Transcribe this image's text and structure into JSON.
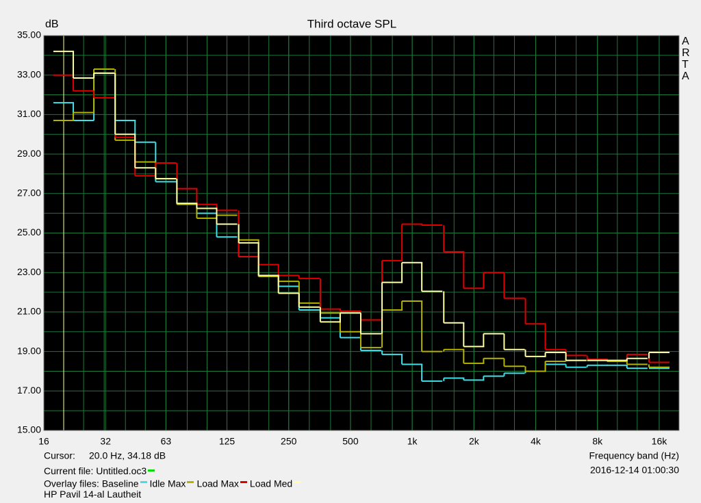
{
  "chart_data": {
    "type": "step",
    "title": "Third octave SPL",
    "y_label": "dB",
    "x_label": "Frequency band (Hz)",
    "watermark": "ARTA",
    "log_x": true,
    "grid": true,
    "x": [
      20,
      25,
      31.5,
      40,
      50,
      63,
      80,
      100,
      125,
      160,
      200,
      250,
      315,
      400,
      500,
      630,
      800,
      1000,
      1250,
      1600,
      2000,
      2500,
      3150,
      4000,
      5000,
      6300,
      8000,
      10000,
      12500,
      16000
    ],
    "xlim": [
      16,
      20000
    ],
    "xticks": [
      16,
      32,
      63,
      125,
      250,
      500,
      {
        "value": 1000,
        "label": "1k"
      },
      {
        "value": 2000,
        "label": "2k"
      },
      {
        "value": 4000,
        "label": "4k"
      },
      {
        "value": 8000,
        "label": "8k"
      },
      {
        "value": 16000,
        "label": "16k"
      }
    ],
    "ylim": [
      15,
      35
    ],
    "yticks": [
      {
        "value": 15,
        "label": "15.00"
      },
      {
        "value": 17,
        "label": "17.00"
      },
      {
        "value": 19,
        "label": "19.00"
      },
      {
        "value": 21,
        "label": "21.00"
      },
      {
        "value": 23,
        "label": "23.00"
      },
      {
        "value": 25,
        "label": "25.00"
      },
      {
        "value": 27,
        "label": "27.00"
      },
      {
        "value": 29,
        "label": "29.00"
      },
      {
        "value": 31,
        "label": "31.00"
      },
      {
        "value": 33,
        "label": "33.00"
      },
      {
        "value": 35,
        "label": "35.00"
      }
    ],
    "series": [
      {
        "name": "Baseline",
        "color": "#3fe0e8",
        "values": [
          31.6,
          30.7,
          33.1,
          30.7,
          29.6,
          27.6,
          26.5,
          26.0,
          24.8,
          23.8,
          22.8,
          22.3,
          21.1,
          20.7,
          19.7,
          19.05,
          18.85,
          18.35,
          17.5,
          17.65,
          17.55,
          17.75,
          17.9,
          18.0,
          18.35,
          18.2,
          18.3,
          18.3,
          18.15,
          18.15
        ]
      },
      {
        "name": "Idle Max",
        "color": "#b4b400",
        "values": [
          30.7,
          31.1,
          33.3,
          29.7,
          28.6,
          27.75,
          26.45,
          25.75,
          25.9,
          24.65,
          22.8,
          22.55,
          21.45,
          20.95,
          20.0,
          19.2,
          21.1,
          21.55,
          19.0,
          19.1,
          18.4,
          18.65,
          18.25,
          18.0,
          18.5,
          18.55,
          18.55,
          18.5,
          18.35,
          18.2
        ]
      },
      {
        "name": "Load Max",
        "color": "#e00000",
        "values": [
          33.0,
          32.2,
          31.85,
          29.85,
          27.9,
          28.55,
          27.25,
          26.45,
          26.15,
          23.8,
          23.4,
          22.85,
          22.7,
          21.15,
          21.05,
          20.6,
          23.6,
          25.45,
          25.4,
          24.05,
          22.2,
          23.0,
          21.7,
          20.4,
          19.1,
          18.8,
          18.6,
          18.55,
          18.85,
          18.45
        ]
      },
      {
        "name": "Load Med",
        "color": "#ffffa8",
        "values": [
          34.2,
          32.85,
          33.1,
          30.0,
          28.3,
          27.75,
          26.5,
          26.25,
          25.45,
          24.5,
          22.85,
          21.95,
          21.25,
          20.5,
          20.95,
          19.9,
          22.5,
          23.5,
          22.05,
          20.45,
          19.25,
          19.9,
          19.1,
          18.75,
          18.95,
          18.55,
          18.55,
          18.55,
          18.65,
          18.95
        ]
      }
    ],
    "cursor_label": "Cursor:",
    "cursor_text": "20.0 Hz, 34.18 dB",
    "cursor_color": "#ffffa8",
    "current_file": "Current file: Untitled.oc3",
    "current_file_color": "#00e000",
    "overlay_label": "Overlay files:",
    "timestamp": "2016-12-14  01:00:30",
    "caption": "HP Pavil 14-al Lautheit"
  }
}
